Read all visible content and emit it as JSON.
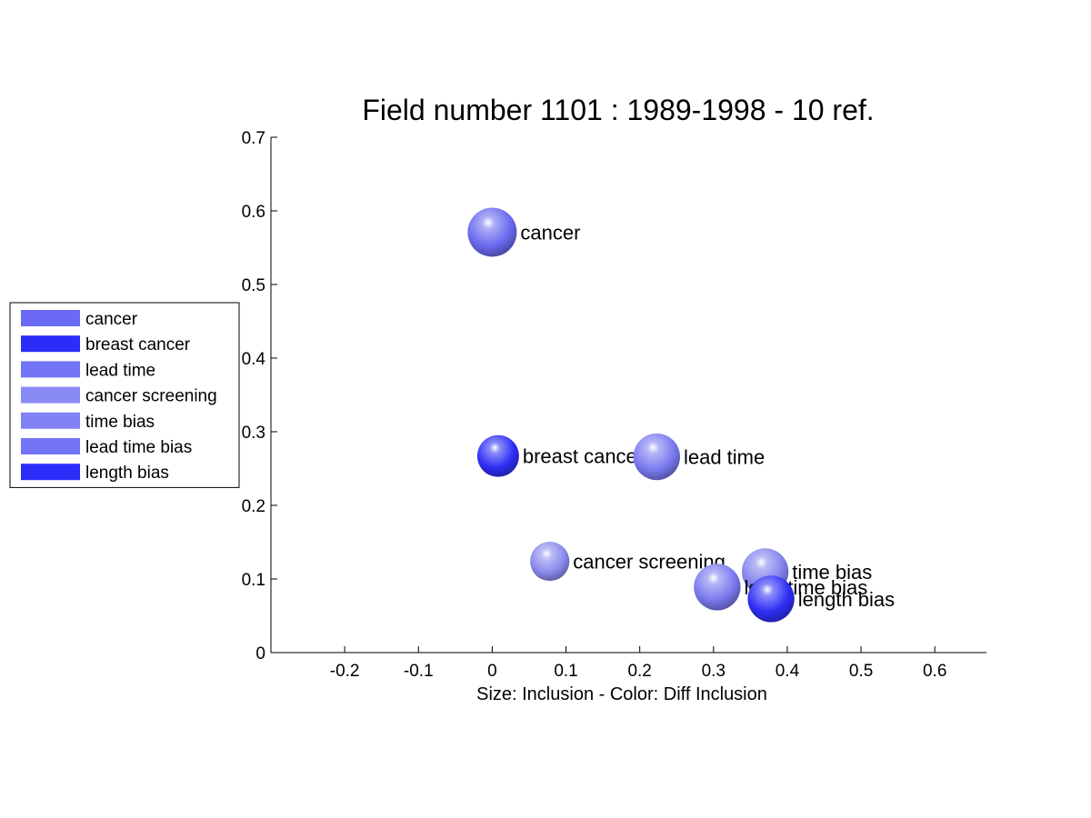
{
  "chart_data": {
    "type": "scatter",
    "title": "Field number 1101 : 1989-1998  - 10 ref.",
    "xlabel": "Size: Inclusion - Color: Diff Inclusion",
    "ylabel": "",
    "xlim": [
      -0.3,
      0.67
    ],
    "ylim": [
      0,
      0.7
    ],
    "xticks": [
      "-0.2",
      "-0.1",
      "0",
      "0.1",
      "0.2",
      "0.3",
      "0.4",
      "0.5",
      "0.6"
    ],
    "yticks": [
      "0",
      "0.1",
      "0.2",
      "0.3",
      "0.4",
      "0.5",
      "0.6",
      "0.7"
    ],
    "grid": false,
    "legend_position": "left",
    "points": [
      {
        "label": "cancer",
        "x": 0.0,
        "y": 0.571,
        "size": 1.0,
        "color": "#6a6af0"
      },
      {
        "label": "breast cancer",
        "x": 0.008,
        "y": 0.267,
        "size": 0.85,
        "color": "#2e2ef5"
      },
      {
        "label": "lead time",
        "x": 0.223,
        "y": 0.266,
        "size": 0.95,
        "color": "#7a7af0"
      },
      {
        "label": "cancer screening",
        "x": 0.078,
        "y": 0.124,
        "size": 0.8,
        "color": "#8a8aee"
      },
      {
        "label": "time bias",
        "x": 0.37,
        "y": 0.11,
        "size": 0.95,
        "color": "#8484ee"
      },
      {
        "label": "lead time bias",
        "x": 0.305,
        "y": 0.089,
        "size": 0.95,
        "color": "#7a7af0"
      },
      {
        "label": "length bias",
        "x": 0.378,
        "y": 0.073,
        "size": 0.95,
        "color": "#2e2ef5"
      }
    ]
  },
  "legend": {
    "items": [
      {
        "label": "cancer",
        "color": "#6a6af6"
      },
      {
        "label": "breast cancer",
        "color": "#2c2cf8"
      },
      {
        "label": "lead time",
        "color": "#7474f6"
      },
      {
        "label": "cancer screening",
        "color": "#8a8af4"
      },
      {
        "label": "time bias",
        "color": "#8282f5"
      },
      {
        "label": "lead time bias",
        "color": "#7474f6"
      },
      {
        "label": "length bias",
        "color": "#2c2cf8"
      }
    ]
  }
}
